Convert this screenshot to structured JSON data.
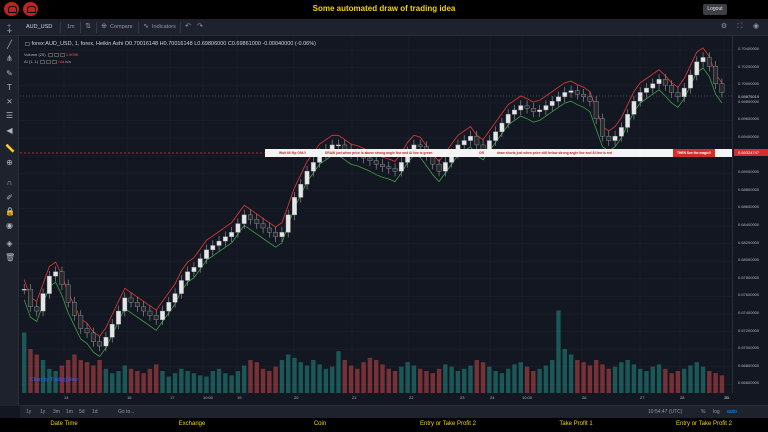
{
  "header": {
    "title": "Some automated draw of trading idea",
    "logout_label": "Logout"
  },
  "toolbar": {
    "symbol": "AUD_USD",
    "interval": "1m",
    "compare_label": "Compare",
    "indicators_label": "Indicators"
  },
  "legend": {
    "main": "forex:AUD_USD, 1, forex, Heikin Ashi",
    "o": "O0.70016148",
    "h": "H0.70016148",
    "l": "L0.69806000",
    "c": "C0.69861000",
    "change": "-0.00040000 (-0.06%)",
    "volume_label": "Volume (20)",
    "volume_value": "1.509K",
    "ai_label": "AI (1, 1)",
    "ai_value1": "n/a",
    "ai_value2": "n/a"
  },
  "banner": {
    "segments": [
      "Wait till flip ONLY",
      "DRAW just when  price is above strong angle line and AI line is green",
      "OR",
      "draw shorts just when price still below strong angle line and AI line is red",
      "THEN See the magic!!"
    ]
  },
  "price_axis": {
    "labels": [
      "0.70400000",
      "0.70200000",
      "0.70000000",
      "0.69800000",
      "0.69600000",
      "0.69400000",
      "0.69200000",
      "0.69000000",
      "0.68800000",
      "0.68600000",
      "0.68400000",
      "0.68200000",
      "0.68000000",
      "0.67800000",
      "0.67600000",
      "0.67400000",
      "0.67200000",
      "0.67000000",
      "0.66800000",
      "0.66600000"
    ],
    "current_price": "0.69875019",
    "line_price": "0.69324747"
  },
  "time_axis": {
    "labels": [
      "14",
      "16",
      "17",
      "10:00",
      "19",
      "20",
      "21",
      "22",
      "23",
      "24",
      "10:00",
      "26",
      "27",
      "28",
      "29",
      "31"
    ]
  },
  "bottombar": {
    "ranges": [
      "1y",
      "1y",
      "3m",
      "1m",
      "5d",
      "1d",
      "Go to..."
    ],
    "clock": "10:54:47 (UTC)",
    "pct": "%",
    "log": "log",
    "auto": "auto"
  },
  "watermark": "Chart by TradingView",
  "footer": {
    "items": [
      "Date Time",
      "Exchange",
      "Coin",
      "Entry or Take Profit 2",
      "Take Profit 1",
      "Entry or Take Profit 2"
    ]
  },
  "chart_data": {
    "type": "candlestick",
    "title": "",
    "ylim": [
      0.666,
      0.705
    ],
    "candles": [
      0.6765,
      0.6745,
      0.674,
      0.676,
      0.678,
      0.6785,
      0.677,
      0.675,
      0.6735,
      0.672,
      0.6715,
      0.6705,
      0.67,
      0.671,
      0.6725,
      0.674,
      0.6755,
      0.675,
      0.6745,
      0.674,
      0.6735,
      0.673,
      0.674,
      0.675,
      0.676,
      0.6775,
      0.6785,
      0.679,
      0.68,
      0.681,
      0.6815,
      0.682,
      0.6825,
      0.683,
      0.684,
      0.685,
      0.6845,
      0.684,
      0.6835,
      0.683,
      0.6825,
      0.683,
      0.685,
      0.687,
      0.6885,
      0.69,
      0.691,
      0.692,
      0.6925,
      0.693,
      0.693,
      0.6925,
      0.692,
      0.6918,
      0.6915,
      0.6912,
      0.6908,
      0.6905,
      0.6903,
      0.69,
      0.691,
      0.6922,
      0.693,
      0.6928,
      0.6918,
      0.6908,
      0.69,
      0.691,
      0.692,
      0.693,
      0.6935,
      0.694,
      0.693,
      0.6925,
      0.6935,
      0.6945,
      0.6955,
      0.6965,
      0.697,
      0.6975,
      0.6972,
      0.6968,
      0.697,
      0.6975,
      0.698,
      0.6985,
      0.699,
      0.6992,
      0.6988,
      0.6985,
      0.698,
      0.696,
      0.694,
      0.6935,
      0.694,
      0.695,
      0.6965,
      0.698,
      0.699,
      0.6995,
      0.7,
      0.7005,
      0.6998,
      0.699,
      0.6985,
      0.6995,
      0.701,
      0.7025,
      0.703,
      0.702,
      0.7,
      0.699
    ],
    "volumes": [
      0.55,
      0.4,
      0.35,
      0.3,
      0.22,
      0.2,
      0.25,
      0.3,
      0.35,
      0.3,
      0.28,
      0.25,
      0.3,
      0.22,
      0.18,
      0.2,
      0.25,
      0.22,
      0.2,
      0.18,
      0.22,
      0.26,
      0.2,
      0.15,
      0.18,
      0.22,
      0.2,
      0.18,
      0.16,
      0.15,
      0.2,
      0.22,
      0.18,
      0.16,
      0.2,
      0.25,
      0.3,
      0.28,
      0.22,
      0.2,
      0.24,
      0.3,
      0.35,
      0.32,
      0.28,
      0.25,
      0.3,
      0.26,
      0.22,
      0.24,
      0.38,
      0.3,
      0.25,
      0.22,
      0.28,
      0.32,
      0.3,
      0.26,
      0.22,
      0.2,
      0.24,
      0.28,
      0.25,
      0.22,
      0.2,
      0.18,
      0.22,
      0.26,
      0.24,
      0.2,
      0.22,
      0.25,
      0.3,
      0.28,
      0.24,
      0.2,
      0.18,
      0.22,
      0.26,
      0.28,
      0.24,
      0.2,
      0.22,
      0.25,
      0.3,
      0.75,
      0.4,
      0.35,
      0.3,
      0.28,
      0.25,
      0.3,
      0.26,
      0.22,
      0.24,
      0.28,
      0.3,
      0.26,
      0.22,
      0.2,
      0.24,
      0.26,
      0.22,
      0.18,
      0.2,
      0.22,
      0.25,
      0.28,
      0.24,
      0.2,
      0.18,
      0.16
    ]
  }
}
